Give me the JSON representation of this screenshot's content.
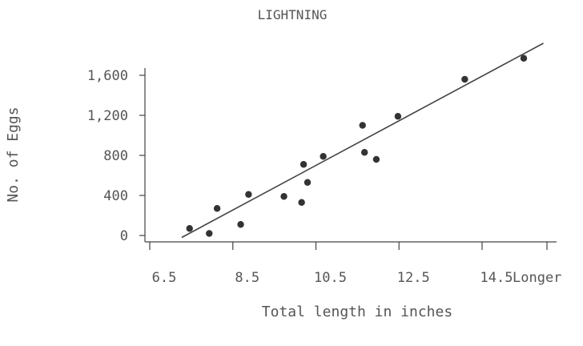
{
  "chart_data": {
    "type": "scatter",
    "title": "LIGHTNING",
    "xlabel": "Total length in inches",
    "ylabel": "No. of Eggs",
    "x_ticks": [
      "6.5",
      "8.5",
      "10.5",
      "12.5",
      "14.5"
    ],
    "x_tick_values": [
      6.5,
      8.5,
      10.5,
      12.5,
      14.5
    ],
    "x_extra_label": "Longer",
    "y_ticks": [
      "0",
      "400",
      "800",
      "1,200",
      "1,600"
    ],
    "y_tick_values": [
      0,
      400,
      800,
      1200,
      1600
    ],
    "xlim": [
      6.3,
      16.5
    ],
    "ylim": [
      -100,
      1900
    ],
    "grid": false,
    "series": [
      {
        "points": [
          {
            "x": 7.3,
            "y": 70
          },
          {
            "x": 7.8,
            "y": 20
          },
          {
            "x": 8.0,
            "y": 270
          },
          {
            "x": 8.6,
            "y": 110
          },
          {
            "x": 8.8,
            "y": 410
          },
          {
            "x": 9.7,
            "y": 390
          },
          {
            "x": 10.2,
            "y": 710
          },
          {
            "x": 10.3,
            "y": 530
          },
          {
            "x": 10.15,
            "y": 330
          },
          {
            "x": 10.7,
            "y": 790
          },
          {
            "x": 11.7,
            "y": 1100
          },
          {
            "x": 11.75,
            "y": 830
          },
          {
            "x": 12.05,
            "y": 760
          },
          {
            "x": 12.6,
            "y": 1190
          },
          {
            "x": 14.3,
            "y": 1560
          },
          {
            "x": 15.8,
            "y": 1770
          }
        ]
      }
    ],
    "trendline": {
      "x": [
        7.1,
        16.3
      ],
      "y": [
        -20,
        1920
      ]
    },
    "colors": {
      "points": "#333333",
      "line": "#444444",
      "axis": "#444444",
      "text": "#555555"
    }
  }
}
